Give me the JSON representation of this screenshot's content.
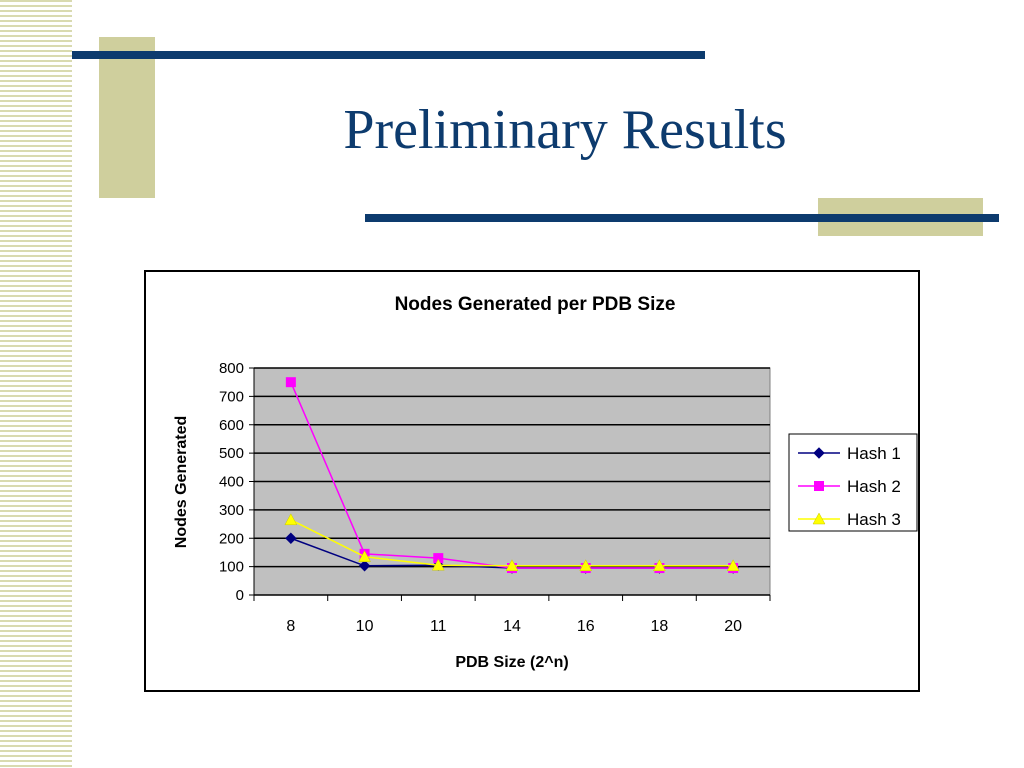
{
  "slide": {
    "title": "Preliminary Results"
  },
  "colors": {
    "title": "#0d3b6e",
    "bar_navy": "#0d3b6e",
    "bar_khaki": "#cfcf9d",
    "stripe": "#d9dab0",
    "plot_bg": "#c0c0c0"
  },
  "chart_data": {
    "type": "line",
    "title": "Nodes Generated per PDB Size",
    "xlabel": "PDB Size (2^n)",
    "ylabel": "Nodes Generated",
    "categories": [
      "8",
      "10",
      "11",
      "14",
      "16",
      "18",
      "20"
    ],
    "ylim": [
      0,
      800
    ],
    "yticks": [
      0,
      100,
      200,
      300,
      400,
      500,
      600,
      700,
      800
    ],
    "grid": true,
    "legend_position": "right",
    "series": [
      {
        "name": "Hash 1",
        "color": "#000080",
        "marker": "diamond",
        "values": [
          200,
          103,
          105,
          95,
          95,
          95,
          95
        ]
      },
      {
        "name": "Hash 2",
        "color": "#ff00ff",
        "marker": "square",
        "values": [
          750,
          145,
          130,
          95,
          95,
          95,
          95
        ]
      },
      {
        "name": "Hash 3",
        "color": "#ffff00",
        "marker": "triangle",
        "values": [
          265,
          135,
          105,
          103,
          103,
          103,
          103
        ]
      }
    ]
  }
}
